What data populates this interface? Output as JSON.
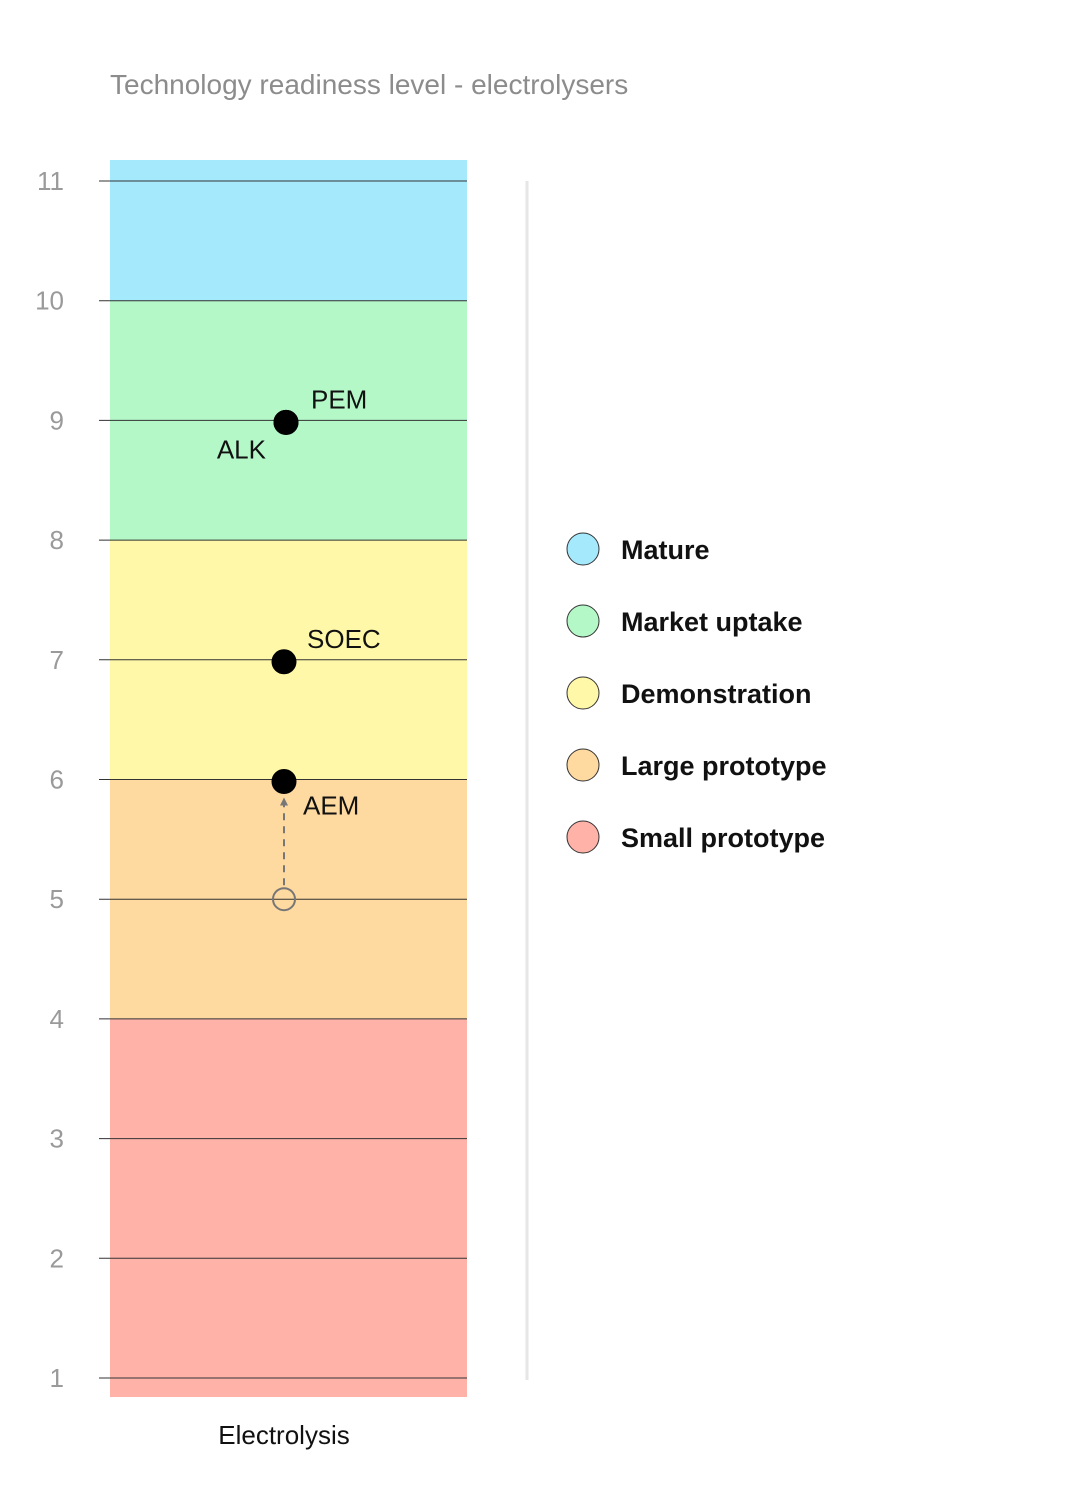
{
  "chart_data": {
    "type": "scatter",
    "title": "Technology readiness level - electrolysers",
    "xlabel": "Electrolysis",
    "ylabel": "",
    "ylim": [
      1,
      11
    ],
    "yticks": [
      "1",
      "2",
      "3",
      "4",
      "5",
      "6",
      "7",
      "8",
      "9",
      "10",
      "11"
    ],
    "grid": true,
    "bands": [
      {
        "name": "Mature",
        "from": 10,
        "to": 11,
        "color": "#a5e9fd"
      },
      {
        "name": "Market uptake",
        "from": 8,
        "to": 10,
        "color": "#b4f8c8"
      },
      {
        "name": "Demonstration",
        "from": 6,
        "to": 8,
        "color": "#fff8a8"
      },
      {
        "name": "Large prototype",
        "from": 4,
        "to": 6,
        "color": "#fed9a0"
      },
      {
        "name": "Small prototype",
        "from": 1,
        "to": 4,
        "color": "#feb2a8"
      }
    ],
    "points": [
      {
        "label": "PEM",
        "value": 9,
        "filled": true
      },
      {
        "label": "ALK",
        "value": 9,
        "filled": true
      },
      {
        "label": "SOEC",
        "value": 7,
        "filled": true
      },
      {
        "label": "AEM",
        "value": 6,
        "filled": true,
        "previous_value": 5
      }
    ],
    "legend_position": "right"
  }
}
